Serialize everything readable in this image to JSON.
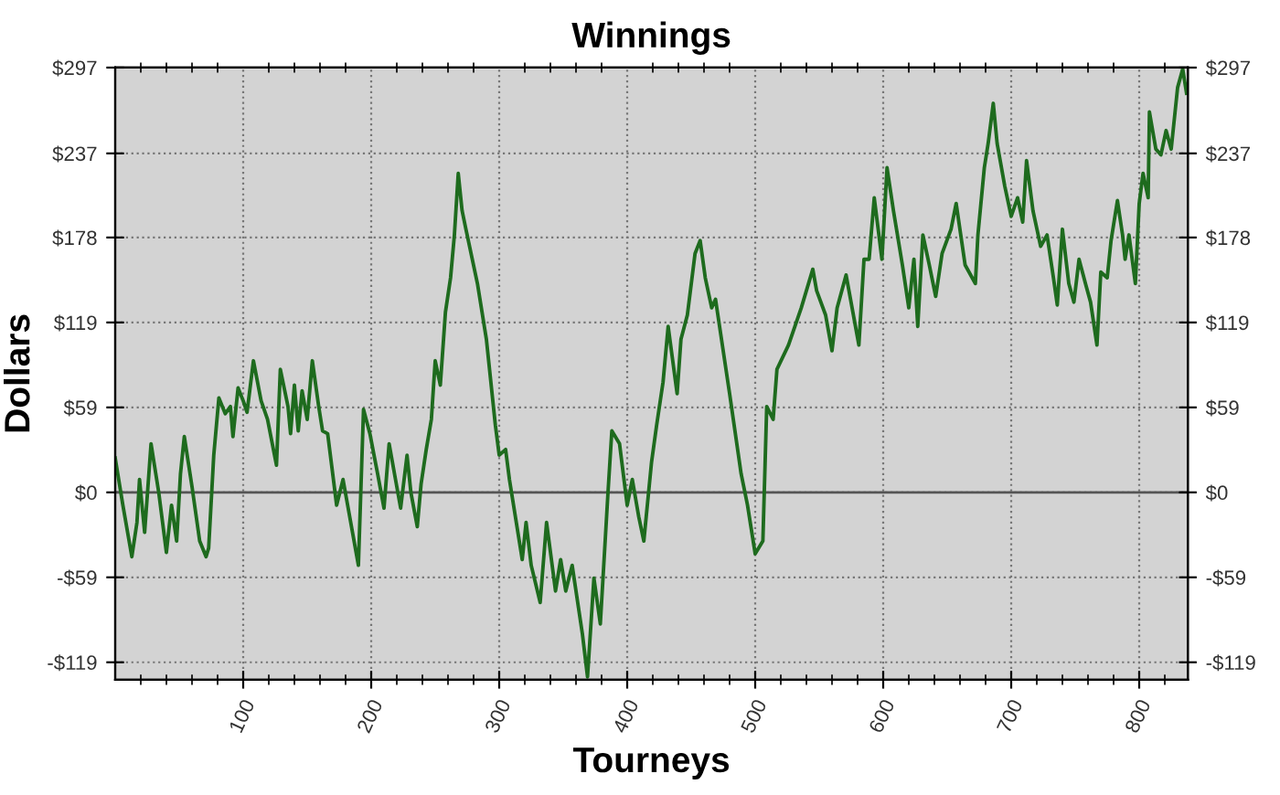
{
  "chart_data": {
    "type": "line",
    "title": "Winnings",
    "xlabel": "Tourneys",
    "ylabel": "Dollars",
    "series": [
      {
        "color": "#1e6b1e",
        "x": [
          0,
          6,
          13,
          17,
          19,
          23,
          28,
          34,
          40,
          44,
          48,
          51,
          54,
          60,
          66,
          71,
          73,
          77,
          81,
          86,
          90,
          92,
          96,
          100,
          103,
          108,
          114,
          119,
          126,
          129,
          135,
          137,
          140,
          143,
          146,
          150,
          154,
          159,
          162,
          166,
          173,
          178,
          190,
          194,
          199,
          205,
          210,
          214,
          219,
          223,
          228,
          231,
          236,
          239,
          243,
          247,
          250,
          254,
          258,
          262,
          265,
          268,
          271,
          274,
          283,
          290,
          297,
          300,
          305,
          308,
          318,
          321,
          325,
          332,
          337,
          344,
          348,
          352,
          357,
          365,
          369,
          374,
          379,
          385,
          388,
          394,
          400,
          404,
          409,
          413,
          419,
          423,
          428,
          432,
          439,
          442,
          447,
          453,
          457,
          461,
          466,
          469,
          480,
          489,
          494,
          500,
          506,
          509,
          514,
          517,
          526,
          536,
          545,
          548,
          555,
          560,
          564,
          571,
          581,
          585,
          589,
          593,
          599,
          603,
          608,
          615,
          620,
          624,
          627,
          631,
          636,
          641,
          646,
          653,
          657,
          664,
          672,
          674,
          679,
          682,
          686,
          689,
          695,
          700,
          705,
          709,
          712,
          717,
          723,
          728,
          733,
          736,
          740,
          745,
          749,
          753,
          758,
          762,
          767,
          770,
          775,
          778,
          783,
          787,
          789,
          792,
          797,
          800,
          803,
          807,
          808,
          813,
          817,
          821,
          825,
          830,
          834,
          837
        ],
        "values": [
          24,
          -9,
          -45,
          -21,
          9,
          -28,
          34,
          0,
          -42,
          -9,
          -34,
          13,
          39,
          4,
          -34,
          -45,
          -39,
          26,
          66,
          55,
          60,
          39,
          73,
          64,
          56,
          92,
          64,
          51,
          19,
          86,
          60,
          41,
          75,
          43,
          71,
          51,
          92,
          60,
          43,
          41,
          -9,
          9,
          -51,
          58,
          41,
          13,
          -11,
          34,
          9,
          -11,
          26,
          0,
          -24,
          6,
          30,
          51,
          92,
          75,
          126,
          150,
          180,
          223,
          197,
          184,
          146,
          107,
          47,
          26,
          30,
          9,
          -47,
          -21,
          -51,
          -77,
          -21,
          -69,
          -47,
          -69,
          -51,
          -99,
          -129,
          -60,
          -92,
          0,
          43,
          34,
          -9,
          9,
          -17,
          -34,
          21,
          47,
          77,
          116,
          69,
          107,
          124,
          167,
          176,
          150,
          129,
          135,
          69,
          13,
          -9,
          -43,
          -34,
          60,
          51,
          86,
          103,
          129,
          156,
          141,
          124,
          99,
          129,
          152,
          103,
          163,
          163,
          206,
          163,
          227,
          197,
          159,
          129,
          163,
          116,
          180,
          159,
          137,
          167,
          184,
          202,
          159,
          146,
          180,
          227,
          244,
          272,
          244,
          214,
          193,
          206,
          189,
          232,
          197,
          172,
          180,
          150,
          131,
          184,
          146,
          133,
          163,
          146,
          133,
          103,
          154,
          150,
          176,
          204,
          180,
          163,
          180,
          146,
          202,
          223,
          206,
          266,
          240,
          236,
          253,
          240,
          283,
          296,
          279
        ]
      }
    ],
    "xlim": [
      0,
      838
    ],
    "xticks": [
      {
        "value": 20,
        "label": null
      },
      {
        "value": 40,
        "label": null
      },
      {
        "value": 60,
        "label": null
      },
      {
        "value": 80,
        "label": null
      },
      100,
      {
        "value": 120,
        "label": null
      },
      {
        "value": 140,
        "label": null
      },
      {
        "value": 160,
        "label": null
      },
      {
        "value": 180,
        "label": null
      },
      200,
      {
        "value": 220,
        "label": null
      },
      {
        "value": 240,
        "label": null
      },
      {
        "value": 260,
        "label": null
      },
      {
        "value": 280,
        "label": null
      },
      300,
      {
        "value": 320,
        "label": null
      },
      {
        "value": 340,
        "label": null
      },
      {
        "value": 360,
        "label": null
      },
      {
        "value": 380,
        "label": null
      },
      400,
      {
        "value": 420,
        "label": null
      },
      {
        "value": 440,
        "label": null
      },
      {
        "value": 460,
        "label": null
      },
      {
        "value": 480,
        "label": null
      },
      500,
      {
        "value": 520,
        "label": null
      },
      {
        "value": 540,
        "label": null
      },
      {
        "value": 560,
        "label": null
      },
      {
        "value": 580,
        "label": null
      },
      600,
      {
        "value": 620,
        "label": null
      },
      {
        "value": 640,
        "label": null
      },
      {
        "value": 660,
        "label": null
      },
      {
        "value": 680,
        "label": null
      },
      700,
      {
        "value": 720,
        "label": null
      },
      {
        "value": 740,
        "label": null
      },
      {
        "value": 760,
        "label": null
      },
      {
        "value": 780,
        "label": null
      },
      800,
      {
        "value": 820,
        "label": null
      }
    ],
    "ylim": [
      -131,
      297
    ],
    "yticks": [
      {
        "value": -118.8,
        "label": "-$119"
      },
      {
        "value": -59.4,
        "label": "-$59"
      },
      {
        "value": 0,
        "label": "$0"
      },
      {
        "value": 59.4,
        "label": "$59"
      },
      {
        "value": 118.8,
        "label": "$119"
      },
      {
        "value": 178.2,
        "label": "$178"
      },
      {
        "value": 237,
        "label": "$237"
      },
      {
        "value": 297,
        "label": "$297"
      }
    ],
    "y2lim": [
      -131,
      297
    ],
    "y2ticks": [
      {
        "value": -118.8,
        "label": "-$119"
      },
      {
        "value": -59.4,
        "label": "-$59"
      },
      {
        "value": 0,
        "label": "$0"
      },
      {
        "value": 59.4,
        "label": "$59"
      },
      {
        "value": 118.8,
        "label": "$119"
      },
      {
        "value": 178.2,
        "label": "$178"
      },
      {
        "value": 237,
        "label": "$237"
      },
      {
        "value": 297,
        "label": "$297"
      }
    ],
    "ref_lines": [
      {
        "axis": "y",
        "value": 0,
        "color": "#555555",
        "line_style": "solid"
      }
    ],
    "grid": true,
    "legend": false,
    "marker": "none",
    "line_style": "solid"
  }
}
